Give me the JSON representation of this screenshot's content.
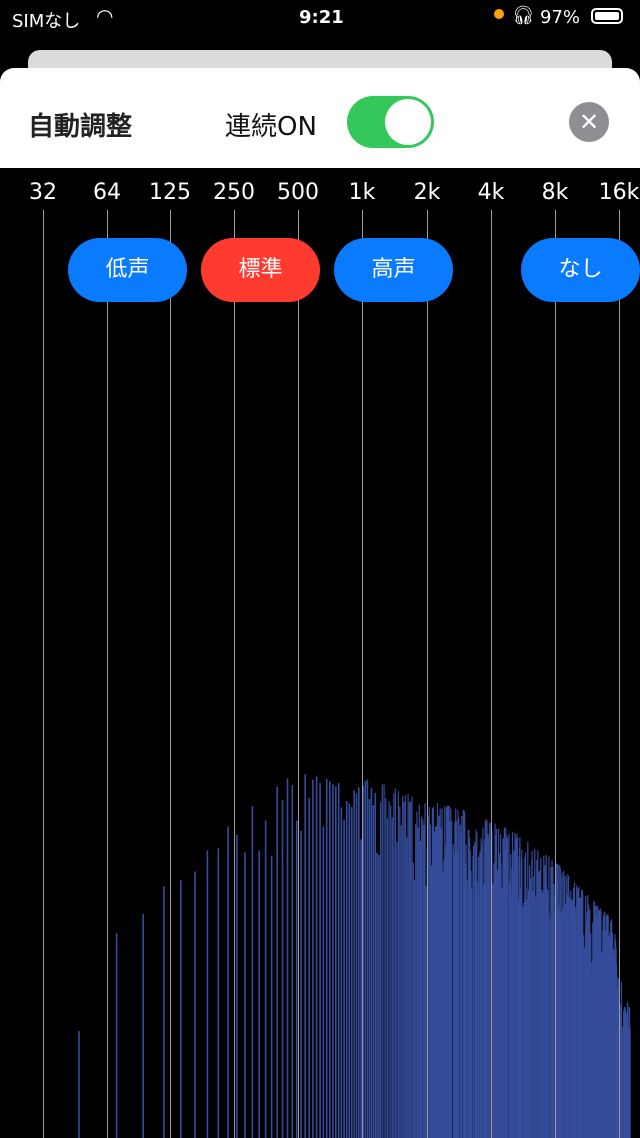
{
  "status_bar": {
    "carrier": "SIMなし",
    "time": "9:21",
    "battery": "97%",
    "icons": [
      "wifi-icon",
      "orange-dot-icon",
      "headphones-icon",
      "battery-icon"
    ]
  },
  "sheet": {
    "title": "自動調整",
    "continuous_label": "連続ON",
    "continuous_on": true,
    "close_icon": "close-icon"
  },
  "frequency_labels": [
    "32",
    "64",
    "125",
    "250",
    "500",
    "1k",
    "2k",
    "4k",
    "8k",
    "16k"
  ],
  "presets": [
    {
      "label": "低声",
      "color": "#0a7aff"
    },
    {
      "label": "標準",
      "color": "#ff3b30",
      "selected": true
    },
    {
      "label": "高声",
      "color": "#0a7aff"
    },
    {
      "label": "なし",
      "color": "#0a7aff"
    }
  ],
  "colors": {
    "accent": "#0a7aff",
    "selected": "#ff3b30",
    "toggle": "#34c759",
    "spectrum": "#354c9a"
  }
}
